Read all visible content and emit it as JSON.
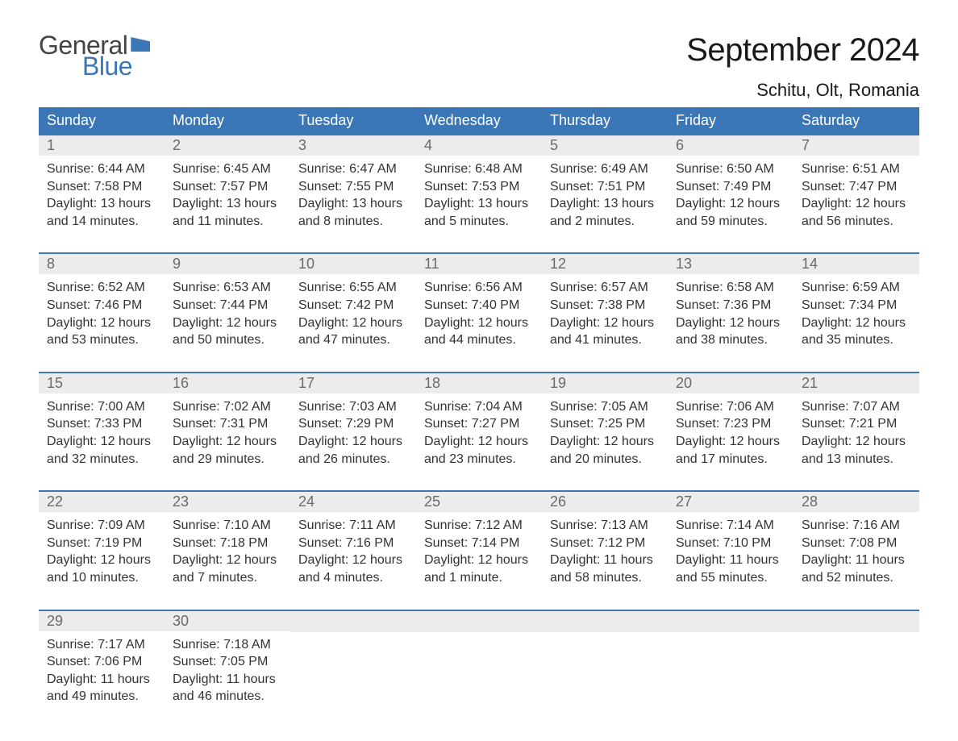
{
  "logo": {
    "text_general": "General",
    "text_blue": "Blue"
  },
  "title": "September 2024",
  "location": "Schitu, Olt, Romania",
  "colors": {
    "header_bg": "#3b76b6",
    "header_text": "#ffffff",
    "daynum_bg": "#ececec",
    "daynum_text": "#6a6a6a",
    "body_text": "#333333",
    "week_border": "#3b76b6",
    "page_bg": "#ffffff"
  },
  "typography": {
    "title_fontsize": 40,
    "location_fontsize": 22,
    "header_fontsize": 18,
    "body_fontsize": 16
  },
  "day_headers": [
    "Sunday",
    "Monday",
    "Tuesday",
    "Wednesday",
    "Thursday",
    "Friday",
    "Saturday"
  ],
  "weeks": [
    [
      {
        "num": "1",
        "sunrise": "Sunrise: 6:44 AM",
        "sunset": "Sunset: 7:58 PM",
        "daylight1": "Daylight: 13 hours",
        "daylight2": "and 14 minutes."
      },
      {
        "num": "2",
        "sunrise": "Sunrise: 6:45 AM",
        "sunset": "Sunset: 7:57 PM",
        "daylight1": "Daylight: 13 hours",
        "daylight2": "and 11 minutes."
      },
      {
        "num": "3",
        "sunrise": "Sunrise: 6:47 AM",
        "sunset": "Sunset: 7:55 PM",
        "daylight1": "Daylight: 13 hours",
        "daylight2": "and 8 minutes."
      },
      {
        "num": "4",
        "sunrise": "Sunrise: 6:48 AM",
        "sunset": "Sunset: 7:53 PM",
        "daylight1": "Daylight: 13 hours",
        "daylight2": "and 5 minutes."
      },
      {
        "num": "5",
        "sunrise": "Sunrise: 6:49 AM",
        "sunset": "Sunset: 7:51 PM",
        "daylight1": "Daylight: 13 hours",
        "daylight2": "and 2 minutes."
      },
      {
        "num": "6",
        "sunrise": "Sunrise: 6:50 AM",
        "sunset": "Sunset: 7:49 PM",
        "daylight1": "Daylight: 12 hours",
        "daylight2": "and 59 minutes."
      },
      {
        "num": "7",
        "sunrise": "Sunrise: 6:51 AM",
        "sunset": "Sunset: 7:47 PM",
        "daylight1": "Daylight: 12 hours",
        "daylight2": "and 56 minutes."
      }
    ],
    [
      {
        "num": "8",
        "sunrise": "Sunrise: 6:52 AM",
        "sunset": "Sunset: 7:46 PM",
        "daylight1": "Daylight: 12 hours",
        "daylight2": "and 53 minutes."
      },
      {
        "num": "9",
        "sunrise": "Sunrise: 6:53 AM",
        "sunset": "Sunset: 7:44 PM",
        "daylight1": "Daylight: 12 hours",
        "daylight2": "and 50 minutes."
      },
      {
        "num": "10",
        "sunrise": "Sunrise: 6:55 AM",
        "sunset": "Sunset: 7:42 PM",
        "daylight1": "Daylight: 12 hours",
        "daylight2": "and 47 minutes."
      },
      {
        "num": "11",
        "sunrise": "Sunrise: 6:56 AM",
        "sunset": "Sunset: 7:40 PM",
        "daylight1": "Daylight: 12 hours",
        "daylight2": "and 44 minutes."
      },
      {
        "num": "12",
        "sunrise": "Sunrise: 6:57 AM",
        "sunset": "Sunset: 7:38 PM",
        "daylight1": "Daylight: 12 hours",
        "daylight2": "and 41 minutes."
      },
      {
        "num": "13",
        "sunrise": "Sunrise: 6:58 AM",
        "sunset": "Sunset: 7:36 PM",
        "daylight1": "Daylight: 12 hours",
        "daylight2": "and 38 minutes."
      },
      {
        "num": "14",
        "sunrise": "Sunrise: 6:59 AM",
        "sunset": "Sunset: 7:34 PM",
        "daylight1": "Daylight: 12 hours",
        "daylight2": "and 35 minutes."
      }
    ],
    [
      {
        "num": "15",
        "sunrise": "Sunrise: 7:00 AM",
        "sunset": "Sunset: 7:33 PM",
        "daylight1": "Daylight: 12 hours",
        "daylight2": "and 32 minutes."
      },
      {
        "num": "16",
        "sunrise": "Sunrise: 7:02 AM",
        "sunset": "Sunset: 7:31 PM",
        "daylight1": "Daylight: 12 hours",
        "daylight2": "and 29 minutes."
      },
      {
        "num": "17",
        "sunrise": "Sunrise: 7:03 AM",
        "sunset": "Sunset: 7:29 PM",
        "daylight1": "Daylight: 12 hours",
        "daylight2": "and 26 minutes."
      },
      {
        "num": "18",
        "sunrise": "Sunrise: 7:04 AM",
        "sunset": "Sunset: 7:27 PM",
        "daylight1": "Daylight: 12 hours",
        "daylight2": "and 23 minutes."
      },
      {
        "num": "19",
        "sunrise": "Sunrise: 7:05 AM",
        "sunset": "Sunset: 7:25 PM",
        "daylight1": "Daylight: 12 hours",
        "daylight2": "and 20 minutes."
      },
      {
        "num": "20",
        "sunrise": "Sunrise: 7:06 AM",
        "sunset": "Sunset: 7:23 PM",
        "daylight1": "Daylight: 12 hours",
        "daylight2": "and 17 minutes."
      },
      {
        "num": "21",
        "sunrise": "Sunrise: 7:07 AM",
        "sunset": "Sunset: 7:21 PM",
        "daylight1": "Daylight: 12 hours",
        "daylight2": "and 13 minutes."
      }
    ],
    [
      {
        "num": "22",
        "sunrise": "Sunrise: 7:09 AM",
        "sunset": "Sunset: 7:19 PM",
        "daylight1": "Daylight: 12 hours",
        "daylight2": "and 10 minutes."
      },
      {
        "num": "23",
        "sunrise": "Sunrise: 7:10 AM",
        "sunset": "Sunset: 7:18 PM",
        "daylight1": "Daylight: 12 hours",
        "daylight2": "and 7 minutes."
      },
      {
        "num": "24",
        "sunrise": "Sunrise: 7:11 AM",
        "sunset": "Sunset: 7:16 PM",
        "daylight1": "Daylight: 12 hours",
        "daylight2": "and 4 minutes."
      },
      {
        "num": "25",
        "sunrise": "Sunrise: 7:12 AM",
        "sunset": "Sunset: 7:14 PM",
        "daylight1": "Daylight: 12 hours",
        "daylight2": "and 1 minute."
      },
      {
        "num": "26",
        "sunrise": "Sunrise: 7:13 AM",
        "sunset": "Sunset: 7:12 PM",
        "daylight1": "Daylight: 11 hours",
        "daylight2": "and 58 minutes."
      },
      {
        "num": "27",
        "sunrise": "Sunrise: 7:14 AM",
        "sunset": "Sunset: 7:10 PM",
        "daylight1": "Daylight: 11 hours",
        "daylight2": "and 55 minutes."
      },
      {
        "num": "28",
        "sunrise": "Sunrise: 7:16 AM",
        "sunset": "Sunset: 7:08 PM",
        "daylight1": "Daylight: 11 hours",
        "daylight2": "and 52 minutes."
      }
    ],
    [
      {
        "num": "29",
        "sunrise": "Sunrise: 7:17 AM",
        "sunset": "Sunset: 7:06 PM",
        "daylight1": "Daylight: 11 hours",
        "daylight2": "and 49 minutes."
      },
      {
        "num": "30",
        "sunrise": "Sunrise: 7:18 AM",
        "sunset": "Sunset: 7:05 PM",
        "daylight1": "Daylight: 11 hours",
        "daylight2": "and 46 minutes."
      },
      {
        "empty": true
      },
      {
        "empty": true
      },
      {
        "empty": true
      },
      {
        "empty": true
      },
      {
        "empty": true
      }
    ]
  ]
}
